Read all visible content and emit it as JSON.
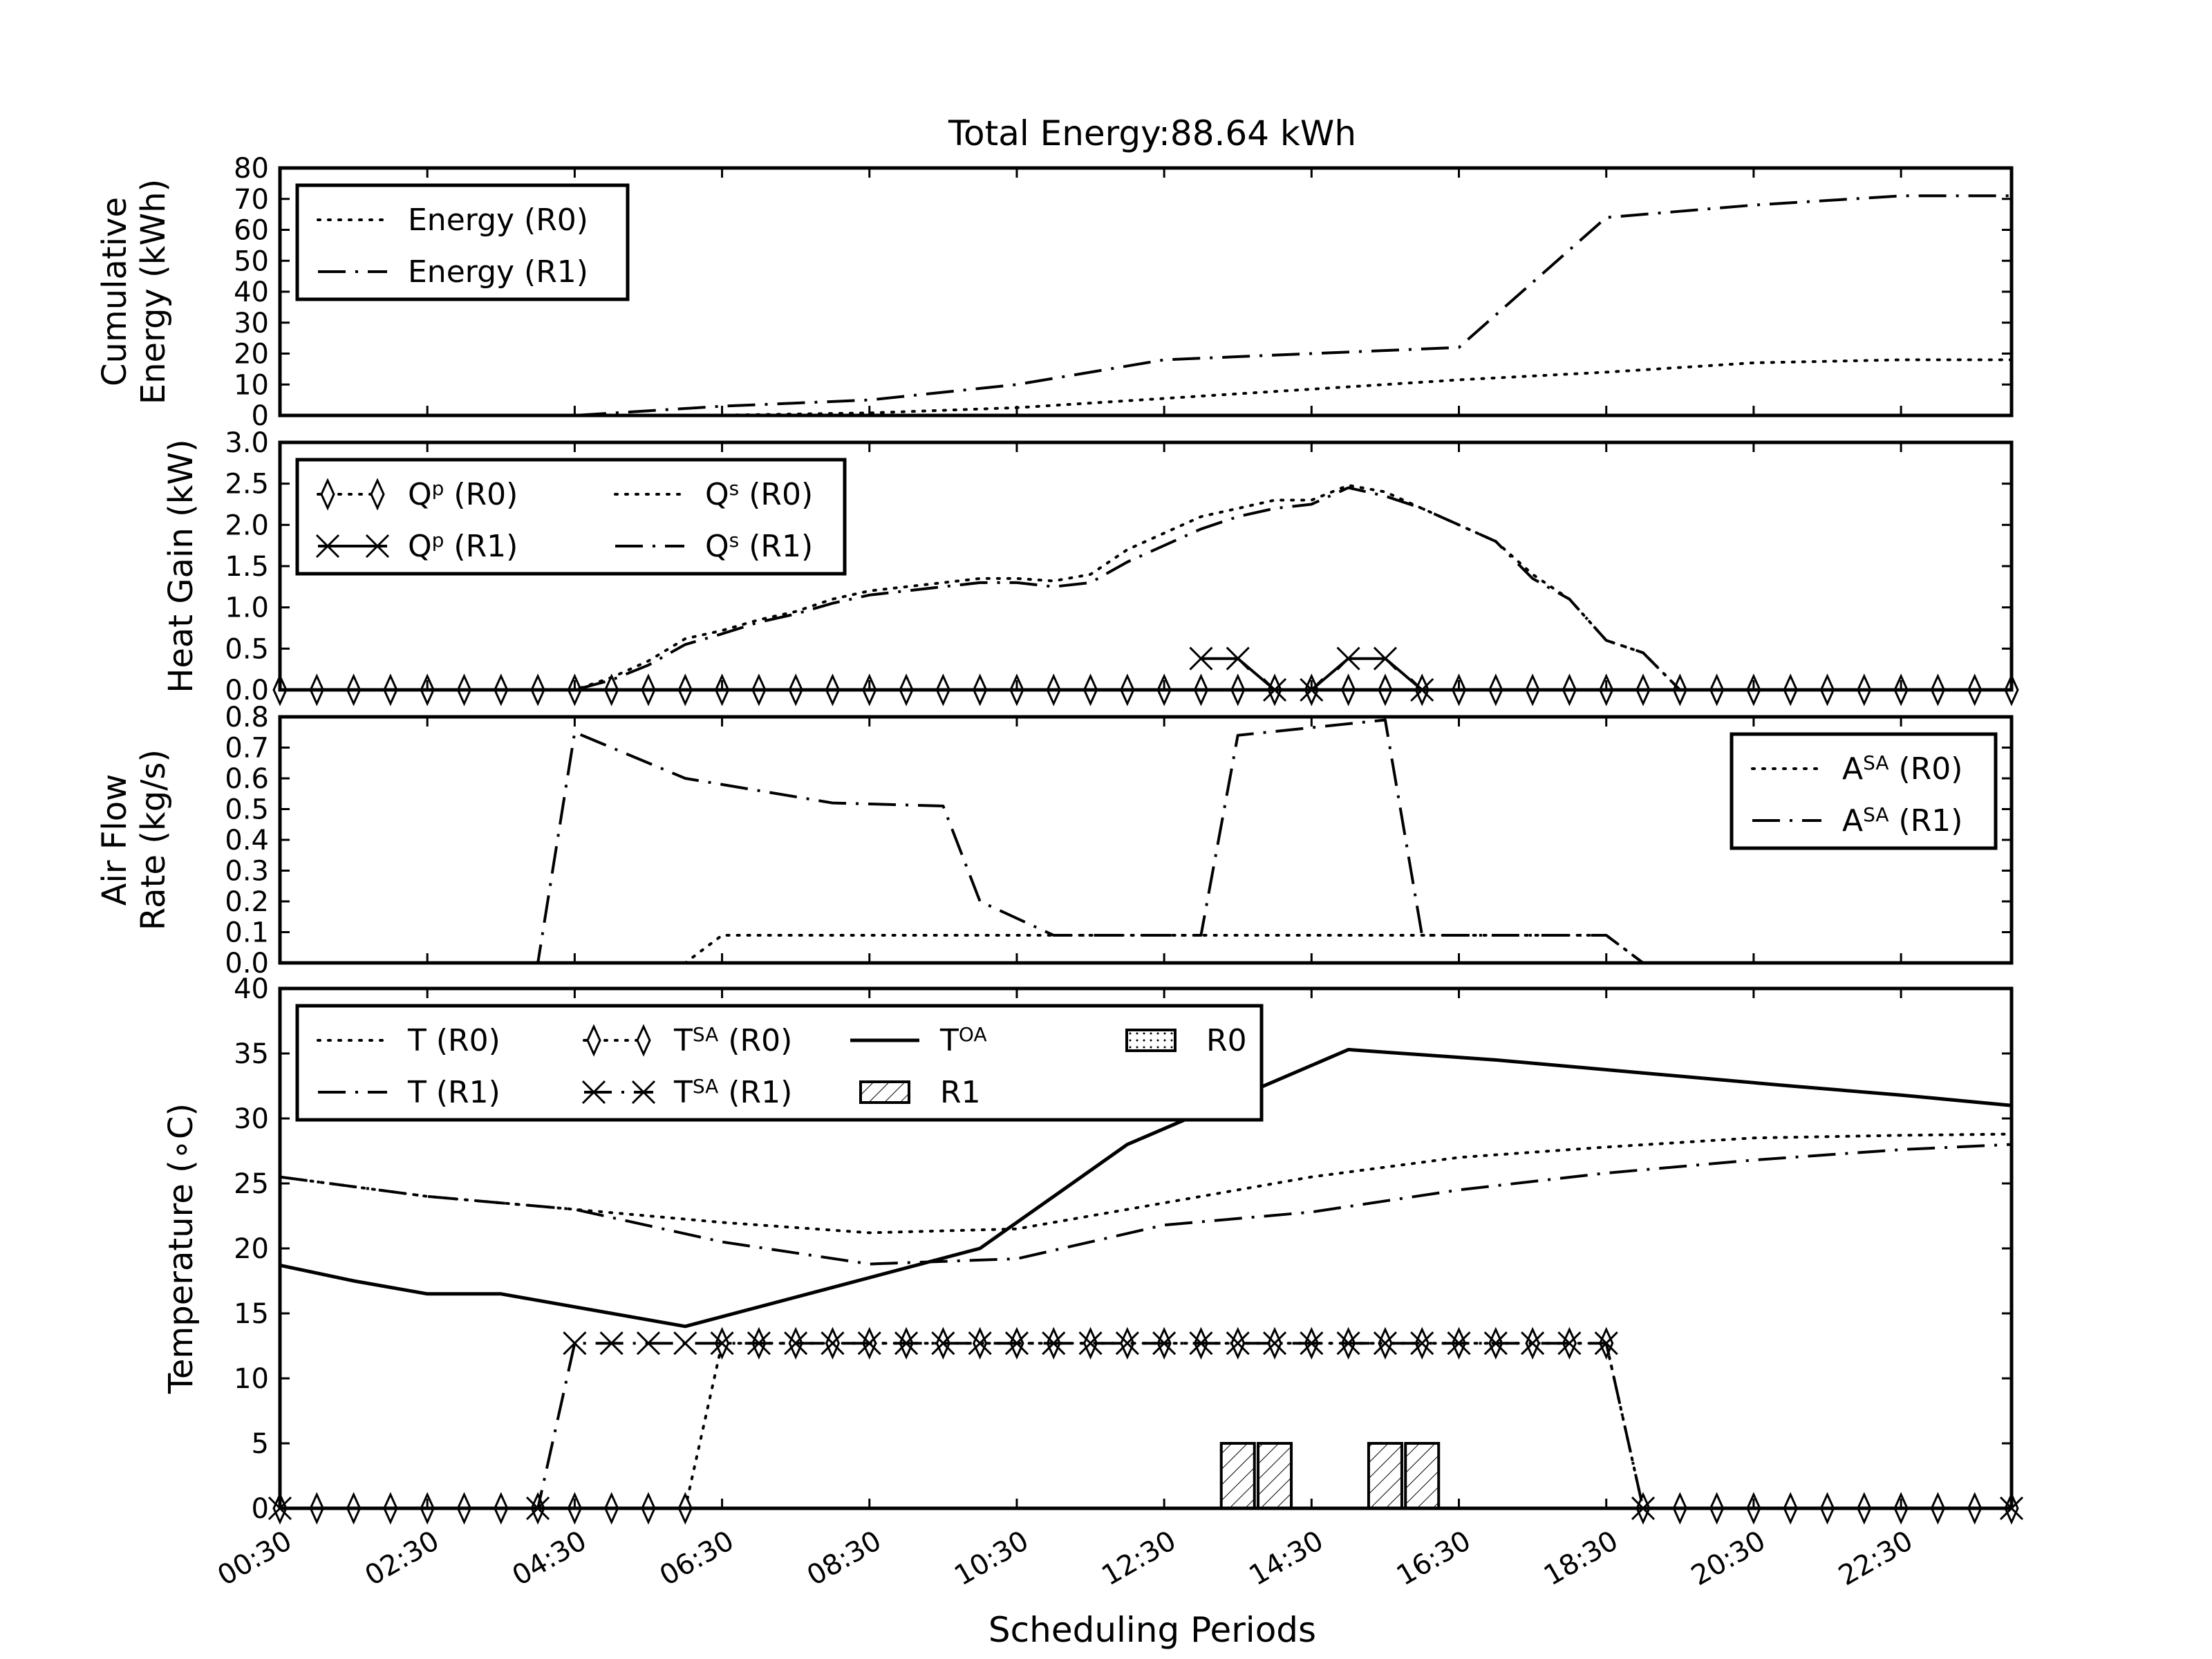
{
  "figure": {
    "title": "Total Energy:88.64 kWh",
    "xlabel": "Scheduling Periods",
    "x_ticks": [
      "00:30",
      "02:30",
      "04:30",
      "06:30",
      "08:30",
      "10:30",
      "12:30",
      "14:30",
      "16:30",
      "18:30",
      "20:30",
      "22:30"
    ]
  },
  "chart_data": [
    {
      "type": "line",
      "ylabel": [
        "Cumulative",
        "Energy (kWh)"
      ],
      "ylim": [
        0,
        80
      ],
      "yticks": [
        0,
        10,
        20,
        30,
        40,
        50,
        60,
        70,
        80
      ],
      "legend_loc": "upper left",
      "x_periods": "1..48 (half-hour scheduling periods, tick labels every 4 periods starting 00:30)",
      "series": [
        {
          "name": "Energy (R0)",
          "style": "dotted",
          "x": [
            1,
            5,
            9,
            13,
            17,
            21,
            25,
            29,
            33,
            37,
            41,
            45,
            48
          ],
          "values": [
            0,
            0,
            0,
            0.1,
            0.8,
            2.5,
            5.5,
            8.5,
            11.5,
            14,
            17,
            18,
            18
          ]
        },
        {
          "name": "Energy (R1)",
          "style": "dashdot",
          "x": [
            1,
            5,
            9,
            13,
            17,
            21,
            25,
            29,
            33,
            37,
            41,
            45,
            48
          ],
          "values": [
            0,
            0,
            0,
            3,
            5,
            10,
            18,
            20,
            22,
            64,
            68,
            71,
            71
          ]
        }
      ]
    },
    {
      "type": "line",
      "ylabel": [
        "Heat Gain (kW)"
      ],
      "ylim": [
        0,
        3.0
      ],
      "yticks": [
        0.0,
        0.5,
        1.0,
        1.5,
        2.0,
        2.5,
        3.0
      ],
      "legend_loc": "upper left",
      "series": [
        {
          "name": "Q",
          "sup": "p",
          "tag": "(R0)",
          "style": "dotted-diamond",
          "x": [
            1,
            2,
            3,
            4,
            5,
            6,
            7,
            8,
            9,
            10,
            11,
            12,
            13,
            14,
            15,
            16,
            17,
            18,
            19,
            20,
            21,
            22,
            23,
            24,
            25,
            26,
            27,
            28,
            29,
            30,
            31,
            32,
            33,
            34,
            35,
            36,
            37,
            38,
            39,
            40,
            41,
            42,
            43,
            44,
            45,
            46,
            47,
            48
          ],
          "values": [
            0,
            0,
            0,
            0,
            0,
            0,
            0,
            0,
            0,
            0,
            0,
            0,
            0,
            0,
            0,
            0,
            0,
            0,
            0,
            0,
            0,
            0,
            0,
            0,
            0,
            0,
            0,
            0,
            0,
            0,
            0,
            0,
            0,
            0,
            0,
            0,
            0,
            0,
            0,
            0,
            0,
            0,
            0,
            0,
            0,
            0,
            0,
            0
          ]
        },
        {
          "name": "Q",
          "sup": "p",
          "tag": "(R1)",
          "style": "solid-x",
          "x": [
            26,
            27,
            28,
            29,
            30,
            31,
            32
          ],
          "values": [
            0.38,
            0.38,
            0,
            0,
            0.38,
            0.38,
            0
          ]
        },
        {
          "name": "Q",
          "sup": "s",
          "tag": "(R0)",
          "style": "dotted",
          "x": [
            1,
            9,
            10,
            11,
            12,
            13,
            14,
            15,
            16,
            17,
            18,
            19,
            20,
            21,
            22,
            23,
            24,
            25,
            26,
            27,
            28,
            29,
            30,
            31,
            32,
            33,
            34,
            35,
            36,
            37,
            38,
            39,
            40,
            48
          ],
          "values": [
            0,
            0,
            0.15,
            0.35,
            0.62,
            0.72,
            0.85,
            0.95,
            1.1,
            1.2,
            1.25,
            1.3,
            1.35,
            1.35,
            1.32,
            1.4,
            1.7,
            1.9,
            2.1,
            2.2,
            2.3,
            2.3,
            2.48,
            2.4,
            2.2,
            2.0,
            1.8,
            1.4,
            1.1,
            0.6,
            0.45,
            0,
            0,
            0
          ]
        },
        {
          "name": "Q",
          "sup": "s",
          "tag": "(R1)",
          "style": "dashdot",
          "x": [
            1,
            9,
            10,
            11,
            12,
            13,
            14,
            15,
            16,
            17,
            18,
            19,
            20,
            21,
            22,
            23,
            24,
            25,
            26,
            27,
            28,
            29,
            30,
            31,
            32,
            33,
            34,
            35,
            36,
            37,
            38,
            39,
            40,
            48
          ],
          "values": [
            0,
            0,
            0.12,
            0.3,
            0.55,
            0.68,
            0.82,
            0.92,
            1.05,
            1.15,
            1.2,
            1.25,
            1.3,
            1.3,
            1.25,
            1.3,
            1.55,
            1.75,
            1.95,
            2.1,
            2.2,
            2.25,
            2.45,
            2.35,
            2.2,
            2.0,
            1.8,
            1.35,
            1.1,
            0.6,
            0.45,
            0,
            0,
            0
          ]
        }
      ]
    },
    {
      "type": "line",
      "ylabel": [
        "Air Flow",
        "Rate (kg/s)"
      ],
      "ylim": [
        0,
        0.8
      ],
      "yticks": [
        0.0,
        0.1,
        0.2,
        0.3,
        0.4,
        0.5,
        0.6,
        0.7,
        0.8
      ],
      "legend_loc": "upper right",
      "series": [
        {
          "name": "A",
          "sup": "SA",
          "tag": "(R0)",
          "style": "dotted",
          "x": [
            1,
            12,
            13,
            37,
            38,
            48
          ],
          "values": [
            0,
            0,
            0.09,
            0.09,
            0,
            0
          ]
        },
        {
          "name": "A",
          "sup": "SA",
          "tag": "(R1)",
          "style": "dashdot",
          "x": [
            1,
            8,
            9,
            12,
            16,
            19,
            20,
            22,
            26,
            27,
            31,
            32,
            37,
            38,
            48
          ],
          "values": [
            0,
            0,
            0.75,
            0.6,
            0.52,
            0.51,
            0.2,
            0.09,
            0.09,
            0.74,
            0.79,
            0.09,
            0.09,
            0,
            0
          ]
        }
      ]
    },
    {
      "type": "line",
      "ylabel": [
        "Temperature (∘C)"
      ],
      "ylim": [
        0,
        40
      ],
      "yticks": [
        0,
        5,
        10,
        15,
        20,
        25,
        30,
        35,
        40
      ],
      "legend_loc": "upper left",
      "series": [
        {
          "name": "T (R0)",
          "style": "dotted",
          "x": [
            1,
            5,
            9,
            13,
            17,
            21,
            25,
            29,
            33,
            37,
            41,
            45,
            48
          ],
          "values": [
            25.5,
            24,
            23,
            22,
            21.2,
            21.5,
            23.5,
            25.5,
            27,
            27.8,
            28.5,
            28.7,
            28.8
          ]
        },
        {
          "name": "T (R1)",
          "style": "dashdot",
          "x": [
            1,
            5,
            9,
            13,
            17,
            21,
            25,
            29,
            33,
            37,
            41,
            45,
            48
          ],
          "values": [
            25.5,
            24,
            23,
            20.5,
            18.8,
            19.2,
            21.8,
            22.8,
            24.5,
            25.8,
            26.8,
            27.6,
            28
          ]
        },
        {
          "name": "T",
          "sup": "SA",
          "tag": "(R0)",
          "style": "dotted-diamond",
          "x": [
            1,
            2,
            3,
            4,
            5,
            6,
            7,
            8,
            9,
            10,
            11,
            12,
            13,
            14,
            15,
            16,
            17,
            18,
            19,
            20,
            21,
            22,
            23,
            24,
            25,
            26,
            27,
            28,
            29,
            30,
            31,
            32,
            33,
            34,
            35,
            36,
            37,
            38,
            39,
            40,
            41,
            42,
            43,
            44,
            45,
            46,
            47,
            48
          ],
          "values": [
            0,
            0,
            0,
            0,
            0,
            0,
            0,
            0,
            0,
            0,
            0,
            0,
            12.7,
            12.7,
            12.7,
            12.7,
            12.7,
            12.7,
            12.7,
            12.7,
            12.7,
            12.7,
            12.7,
            12.7,
            12.7,
            12.7,
            12.7,
            12.7,
            12.7,
            12.7,
            12.7,
            12.7,
            12.7,
            12.7,
            12.7,
            12.7,
            12.7,
            0,
            0,
            0,
            0,
            0,
            0,
            0,
            0,
            0,
            0,
            0
          ]
        },
        {
          "name": "T",
          "sup": "SA",
          "tag": "(R1)",
          "style": "dashed-x",
          "x": [
            1,
            8,
            9,
            10,
            11,
            12,
            13,
            14,
            15,
            16,
            17,
            18,
            19,
            20,
            21,
            22,
            23,
            24,
            25,
            26,
            27,
            28,
            29,
            30,
            31,
            32,
            33,
            34,
            35,
            36,
            37,
            38,
            48
          ],
          "values": [
            0,
            0,
            12.7,
            12.7,
            12.7,
            12.7,
            12.7,
            12.7,
            12.7,
            12.7,
            12.7,
            12.7,
            12.7,
            12.7,
            12.7,
            12.7,
            12.7,
            12.7,
            12.7,
            12.7,
            12.7,
            12.7,
            12.7,
            12.7,
            12.7,
            12.7,
            12.7,
            12.7,
            12.7,
            12.7,
            12.7,
            0,
            0
          ]
        },
        {
          "name": "T",
          "sup": "OA",
          "tag": "",
          "style": "solid",
          "x": [
            1,
            3,
            5,
            7,
            12,
            16,
            20,
            24,
            30,
            34,
            38,
            42,
            45,
            48
          ],
          "values": [
            18.7,
            17.5,
            16.5,
            16.5,
            14,
            17,
            20,
            28,
            35.3,
            34.5,
            33.5,
            32.5,
            31.8,
            31
          ]
        },
        {
          "name": "R0",
          "style": "bar-dotted",
          "x": [],
          "values": []
        },
        {
          "name": "R1",
          "style": "bar-hatched",
          "x": [
            27,
            28,
            31,
            32
          ],
          "values": [
            5,
            5,
            5,
            5
          ]
        }
      ]
    }
  ]
}
